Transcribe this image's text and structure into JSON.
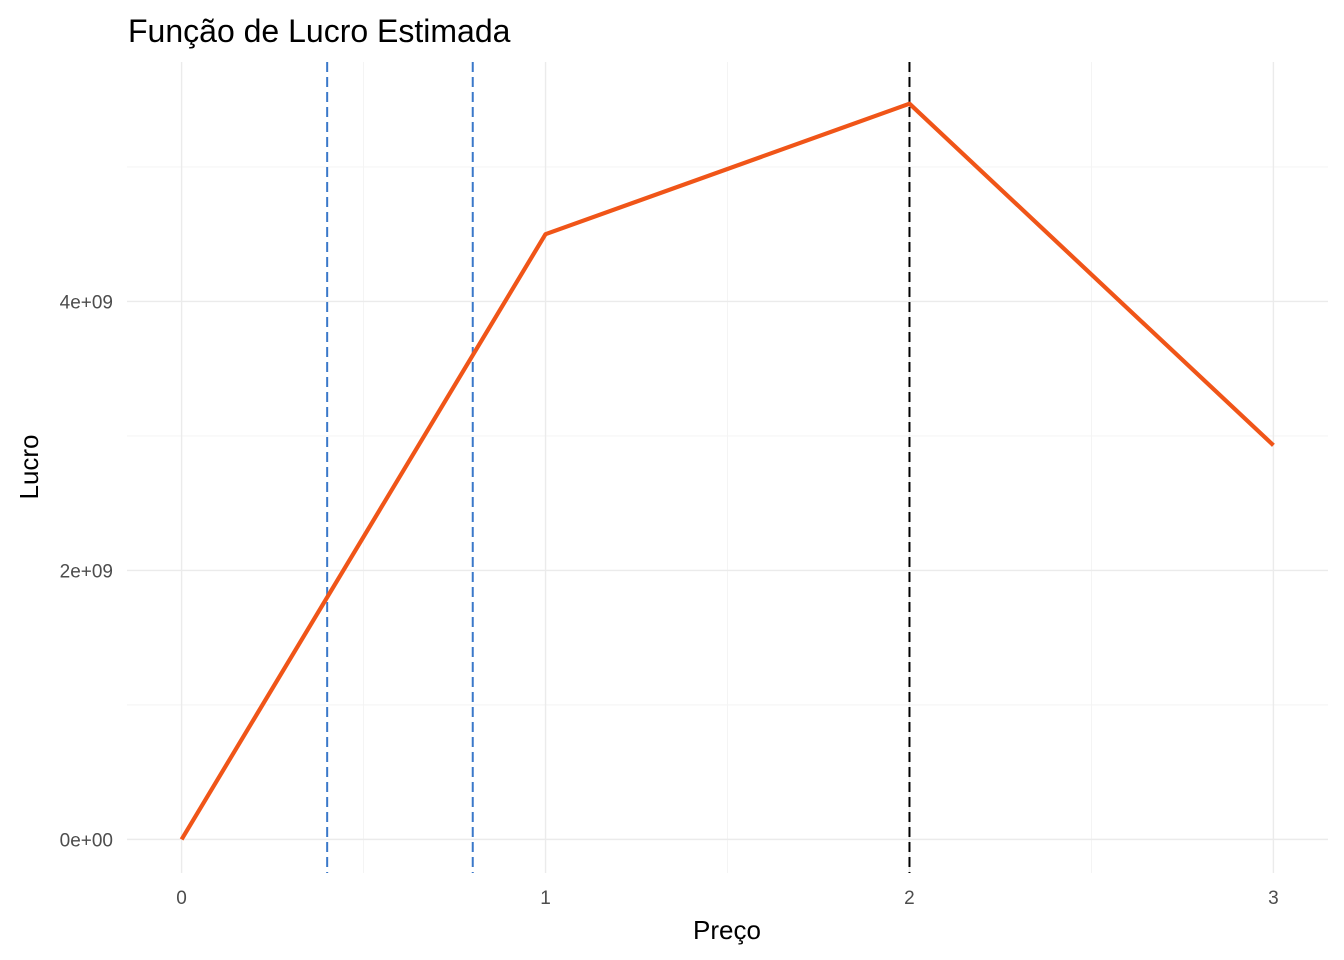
{
  "chart_data": {
    "type": "line",
    "title": "Função de Lucro Estimada",
    "xlabel": "Preço",
    "ylabel": "Lucro",
    "x": [
      0,
      1,
      2,
      3
    ],
    "series": [
      {
        "values": [
          0,
          4500000000,
          5470000000,
          2930000000
        ],
        "color": "#f05518"
      }
    ],
    "xlim": [
      -0.15,
      3.15
    ],
    "ylim": [
      -250000000,
      5780000000
    ],
    "x_ticks": [
      0,
      1,
      2,
      3
    ],
    "x_tick_labels": [
      "0",
      "1",
      "2",
      "3"
    ],
    "y_ticks": [
      0,
      2000000000,
      4000000000
    ],
    "y_tick_labels": [
      "0e+00",
      "2e+09",
      "4e+09"
    ],
    "x_minor_ticks": [
      0.5,
      1.5,
      2.5
    ],
    "y_minor_ticks": [
      1000000000,
      3000000000,
      5000000000
    ],
    "vlines": [
      {
        "x": 0.4,
        "color": "#3a78c9",
        "style": "dashed"
      },
      {
        "x": 0.8,
        "color": "#3a78c9",
        "style": "dashed"
      },
      {
        "x": 2.0,
        "color": "#000000",
        "style": "dashed"
      }
    ],
    "grid": true,
    "legend": "none",
    "theme": "minimal"
  }
}
